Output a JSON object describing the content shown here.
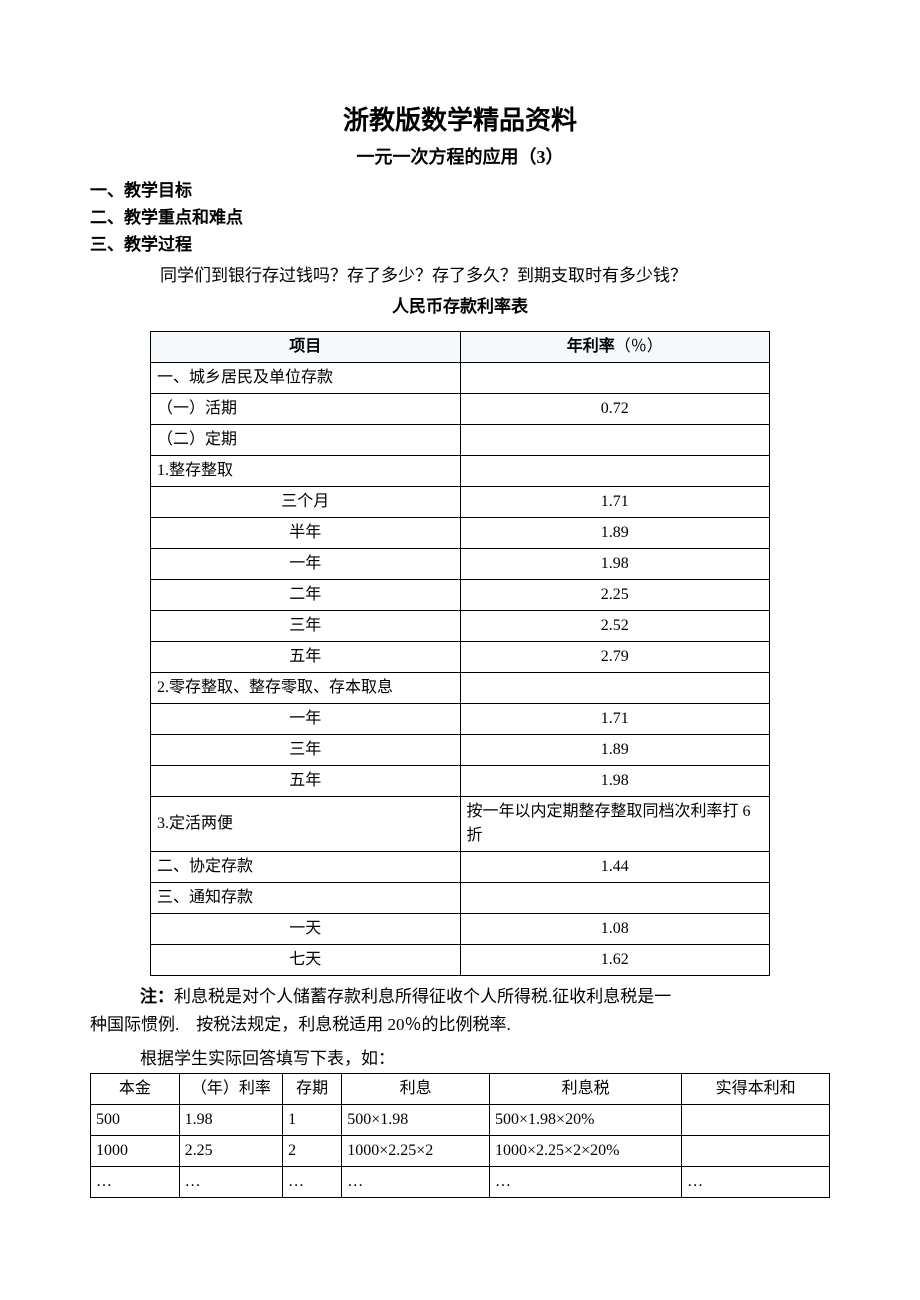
{
  "doc": {
    "title_main": "浙教版数学精品资料",
    "title_sub": "一元一次方程的应用（3）",
    "outline": {
      "a": "一、教学目标",
      "b": "二、教学重点和难点",
      "c": "三、教学过程"
    },
    "question": "同学们到银行存过钱吗？存了多少？存了多久？到期支取时有多少钱？",
    "table_title": "人民币存款利率表",
    "note_bold": "注：",
    "note_text1": "利息税是对个人储蓄存款利息所得征收个人所得税.征收利息税是一",
    "note_text2": "种国际惯例.　按税法规定，利息税适用 20％的比例税率.",
    "fill_intro": "根据学生实际回答填写下表，如："
  },
  "rates": {
    "columns": [
      "项目",
      "年利率"
    ],
    "unit": "（％）",
    "col_widths": [
      "50%",
      "50%"
    ],
    "header_bg": "#f5f9fc",
    "border_color": "#000000",
    "rows": [
      {
        "label": "一、城乡居民及单位存款",
        "align": "left",
        "val": ""
      },
      {
        "label": "（一）活期",
        "align": "left",
        "val": "0.72"
      },
      {
        "label": "（二）定期",
        "align": "left",
        "val": ""
      },
      {
        "label": "1.整存整取",
        "align": "left",
        "val": ""
      },
      {
        "label": "三个月",
        "align": "center",
        "val": "1.71"
      },
      {
        "label": "半年",
        "align": "center",
        "val": "1.89"
      },
      {
        "label": "一年",
        "align": "center",
        "val": "1.98"
      },
      {
        "label": "二年",
        "align": "center",
        "val": "2.25"
      },
      {
        "label": "三年",
        "align": "center",
        "val": "2.52"
      },
      {
        "label": "五年",
        "align": "center",
        "val": "2.79"
      },
      {
        "label": "2.零存整取、整存零取、存本取息",
        "align": "left",
        "val": ""
      },
      {
        "label": "一年",
        "align": "center",
        "val": "1.71"
      },
      {
        "label": "三年",
        "align": "center",
        "val": "1.89"
      },
      {
        "label": "五年",
        "align": "center",
        "val": "1.98"
      },
      {
        "label": "3.定活两便",
        "align": "left",
        "val": "按一年以内定期整存整取同档次利率打 6 折",
        "val_align": "left"
      },
      {
        "label": "二、协定存款",
        "align": "left",
        "val": "1.44"
      },
      {
        "label": "三、通知存款",
        "align": "left",
        "val": ""
      },
      {
        "label": "一天",
        "align": "center",
        "val": "1.08"
      },
      {
        "label": "七天",
        "align": "center",
        "val": "1.62"
      }
    ]
  },
  "calc": {
    "columns": [
      "本金",
      "（年）利率",
      "存期",
      "利息",
      "利息税",
      "实得本利和"
    ],
    "col_widths": [
      "12%",
      "14%",
      "8%",
      "20%",
      "26%",
      "20%"
    ],
    "rows": [
      [
        "500",
        "1.98",
        "1",
        "500×1.98",
        "500×1.98×20%",
        ""
      ],
      [
        "1000",
        "2.25",
        "2",
        "1000×2.25×2",
        "1000×2.25×2×20%",
        ""
      ],
      [
        "…",
        "…",
        "…",
        "…",
        "…",
        "…"
      ]
    ]
  }
}
